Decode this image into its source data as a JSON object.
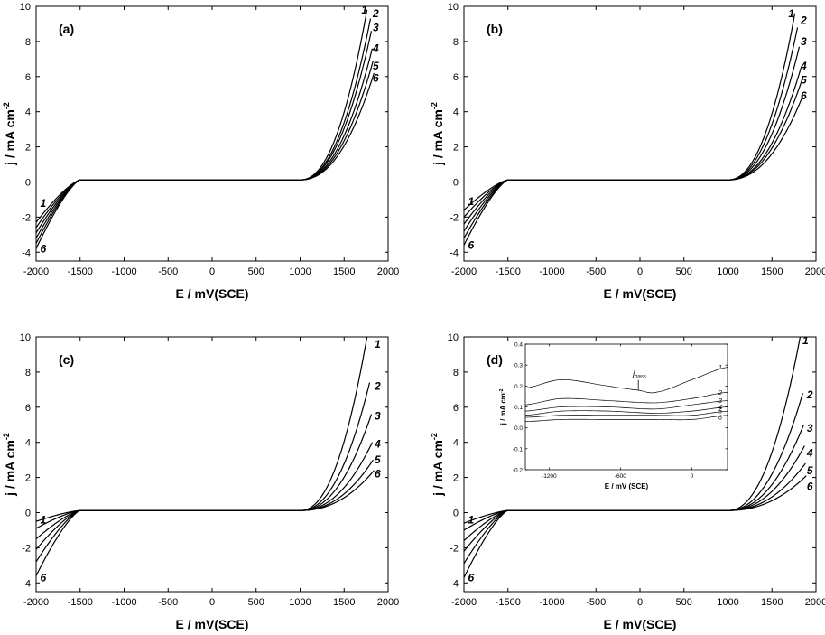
{
  "figure": {
    "xlabel": "E / mV(SCE)",
    "ylabel": "j / mA cm",
    "ylabel_exp": "-2"
  },
  "chart_data": [
    {
      "type": "line",
      "panel": "(a)",
      "xlim": [
        -2000,
        2000
      ],
      "ylim": [
        -4.5,
        10
      ],
      "xticks": [
        -2000,
        -1500,
        -1000,
        -500,
        0,
        500,
        1000,
        1500,
        2000
      ],
      "yticks": [
        -4,
        -2,
        0,
        2,
        4,
        6,
        8,
        10
      ],
      "xlabel": "E / mV(SCE)",
      "ylabel": "j / mA cm-2",
      "series": [
        {
          "name": "1",
          "cath": -2.3,
          "plateau": 0.12,
          "onset": 1000,
          "end_x": 1760,
          "end_y": 9.8
        },
        {
          "name": "2",
          "cath": -2.6,
          "plateau": 0.12,
          "onset": 1000,
          "end_x": 1800,
          "end_y": 9.3
        },
        {
          "name": "3",
          "cath": -2.9,
          "plateau": 0.12,
          "onset": 1000,
          "end_x": 1810,
          "end_y": 8.6
        },
        {
          "name": "4",
          "cath": -3.2,
          "plateau": 0.12,
          "onset": 1000,
          "end_x": 1820,
          "end_y": 7.6
        },
        {
          "name": "5",
          "cath": -3.5,
          "plateau": 0.12,
          "onset": 1000,
          "end_x": 1830,
          "end_y": 6.9
        },
        {
          "name": "6",
          "cath": -3.8,
          "plateau": 0.12,
          "onset": 1000,
          "end_x": 1840,
          "end_y": 6.2
        }
      ],
      "curve_labels": [
        {
          "text": "1",
          "x": 1730,
          "y": 9.8
        },
        {
          "text": "2",
          "x": 1860,
          "y": 9.6
        },
        {
          "text": "3",
          "x": 1860,
          "y": 8.8
        },
        {
          "text": "4",
          "x": 1860,
          "y": 7.6
        },
        {
          "text": "5",
          "x": 1860,
          "y": 6.6
        },
        {
          "text": "6",
          "x": 1860,
          "y": 5.9
        },
        {
          "text": "1",
          "x": -1920,
          "y": -1.2
        },
        {
          "text": "6",
          "x": -1920,
          "y": -3.8
        }
      ]
    },
    {
      "type": "line",
      "panel": "(b)",
      "xlim": [
        -2000,
        2000
      ],
      "ylim": [
        -4.5,
        10
      ],
      "xticks": [
        -2000,
        -1500,
        -1000,
        -500,
        0,
        500,
        1000,
        1500,
        2000
      ],
      "yticks": [
        -4,
        -2,
        0,
        2,
        4,
        6,
        8,
        10
      ],
      "xlabel": "E / mV(SCE)",
      "ylabel": "j / mA cm-2",
      "series": [
        {
          "name": "1",
          "cath": -1.6,
          "plateau": 0.12,
          "onset": 1000,
          "end_x": 1760,
          "end_y": 9.6
        },
        {
          "name": "2",
          "cath": -2.0,
          "plateau": 0.12,
          "onset": 1000,
          "end_x": 1790,
          "end_y": 8.8
        },
        {
          "name": "3",
          "cath": -2.4,
          "plateau": 0.12,
          "onset": 1000,
          "end_x": 1810,
          "end_y": 7.7
        },
        {
          "name": "4",
          "cath": -2.8,
          "plateau": 0.12,
          "onset": 1000,
          "end_x": 1830,
          "end_y": 6.5
        },
        {
          "name": "5",
          "cath": -3.2,
          "plateau": 0.12,
          "onset": 1000,
          "end_x": 1840,
          "end_y": 5.8
        },
        {
          "name": "6",
          "cath": -3.6,
          "plateau": 0.12,
          "onset": 1000,
          "end_x": 1850,
          "end_y": 4.9
        }
      ],
      "curve_labels": [
        {
          "text": "1",
          "x": 1720,
          "y": 9.6
        },
        {
          "text": "2",
          "x": 1860,
          "y": 9.2
        },
        {
          "text": "3",
          "x": 1860,
          "y": 8.0
        },
        {
          "text": "4",
          "x": 1860,
          "y": 6.6
        },
        {
          "text": "5",
          "x": 1860,
          "y": 5.8
        },
        {
          "text": "6",
          "x": 1860,
          "y": 4.9
        },
        {
          "text": "1",
          "x": -1920,
          "y": -1.1
        },
        {
          "text": "6",
          "x": -1920,
          "y": -3.6
        }
      ]
    },
    {
      "type": "line",
      "panel": "(c)",
      "xlim": [
        -2000,
        2000
      ],
      "ylim": [
        -4.5,
        10
      ],
      "xticks": [
        -2000,
        -1500,
        -1000,
        -500,
        0,
        500,
        1000,
        1500,
        2000
      ],
      "yticks": [
        -4,
        -2,
        0,
        2,
        4,
        6,
        8,
        10
      ],
      "xlabel": "E / mV(SCE)",
      "ylabel": "j / mA cm-2",
      "series": [
        {
          "name": "1",
          "cath": -0.5,
          "plateau": 0.12,
          "onset": 1000,
          "end_x": 1760,
          "end_y": 10.0
        },
        {
          "name": "2",
          "cath": -0.9,
          "plateau": 0.12,
          "onset": 1000,
          "end_x": 1790,
          "end_y": 7.4
        },
        {
          "name": "3",
          "cath": -1.5,
          "plateau": 0.12,
          "onset": 1000,
          "end_x": 1810,
          "end_y": 5.6
        },
        {
          "name": "4",
          "cath": -2.1,
          "plateau": 0.12,
          "onset": 1000,
          "end_x": 1820,
          "end_y": 4.0
        },
        {
          "name": "5",
          "cath": -2.8,
          "plateau": 0.12,
          "onset": 1000,
          "end_x": 1830,
          "end_y": 3.0
        },
        {
          "name": "6",
          "cath": -3.6,
          "plateau": 0.12,
          "onset": 1000,
          "end_x": 1840,
          "end_y": 2.4
        }
      ],
      "curve_labels": [
        {
          "text": "1",
          "x": 1880,
          "y": 9.6
        },
        {
          "text": "2",
          "x": 1880,
          "y": 7.2
        },
        {
          "text": "3",
          "x": 1880,
          "y": 5.5
        },
        {
          "text": "4",
          "x": 1880,
          "y": 3.9
        },
        {
          "text": "5",
          "x": 1880,
          "y": 3.0
        },
        {
          "text": "6",
          "x": 1880,
          "y": 2.2
        },
        {
          "text": "1",
          "x": -1920,
          "y": -0.4
        },
        {
          "text": "6",
          "x": -1920,
          "y": -3.7
        }
      ]
    },
    {
      "type": "line",
      "panel": "(d)",
      "xlim": [
        -2000,
        2000
      ],
      "ylim": [
        -4.5,
        10
      ],
      "xticks": [
        -2000,
        -1500,
        -1000,
        -500,
        0,
        500,
        1000,
        1500,
        2000
      ],
      "yticks": [
        -4,
        -2,
        0,
        2,
        4,
        6,
        8,
        10
      ],
      "xlabel": "E / mV(SCE)",
      "ylabel": "j / mA cm-2",
      "series": [
        {
          "name": "1",
          "cath": -0.6,
          "plateau": 0.12,
          "onset": 1000,
          "end_x": 1820,
          "end_y": 10.0
        },
        {
          "name": "2",
          "cath": -1.0,
          "plateau": 0.12,
          "onset": 1000,
          "end_x": 1850,
          "end_y": 6.8
        },
        {
          "name": "3",
          "cath": -1.6,
          "plateau": 0.12,
          "onset": 1000,
          "end_x": 1860,
          "end_y": 5.0
        },
        {
          "name": "4",
          "cath": -2.2,
          "plateau": 0.12,
          "onset": 1000,
          "end_x": 1870,
          "end_y": 3.8
        },
        {
          "name": "5",
          "cath": -2.9,
          "plateau": 0.12,
          "onset": 1000,
          "end_x": 1880,
          "end_y": 2.8
        },
        {
          "name": "6",
          "cath": -3.7,
          "plateau": 0.12,
          "onset": 1000,
          "end_x": 1890,
          "end_y": 2.1
        }
      ],
      "curve_labels": [
        {
          "text": "1",
          "x": 1880,
          "y": 9.8
        },
        {
          "text": "2",
          "x": 1930,
          "y": 6.7
        },
        {
          "text": "3",
          "x": 1930,
          "y": 4.8
        },
        {
          "text": "4",
          "x": 1930,
          "y": 3.4
        },
        {
          "text": "5",
          "x": 1930,
          "y": 2.4
        },
        {
          "text": "6",
          "x": 1930,
          "y": 1.5
        },
        {
          "text": "1",
          "x": -1920,
          "y": -0.4
        },
        {
          "text": "6",
          "x": -1920,
          "y": -3.7
        }
      ],
      "inset": {
        "type": "line",
        "xlim": [
          -1400,
          300
        ],
        "ylim": [
          -0.2,
          0.4
        ],
        "xticks": [
          -1200,
          -600,
          0
        ],
        "yticks": [
          -0.2,
          -0.1,
          0.0,
          0.1,
          0.2,
          0.3,
          0.4
        ],
        "ytick_labels": [
          "-0.2",
          "-0.1",
          "0.0",
          "0.1",
          "0.2",
          "0.3",
          "0.4"
        ],
        "xlabel": "E / mV (SCE)",
        "ylabel": "j / mA cm",
        "ylabel_exp": "-2",
        "annotation": {
          "text": "j",
          "sub": "pass",
          "x": -450,
          "y": 0.22
        },
        "series": [
          {
            "name": "1",
            "x": [
              -1400,
              -1100,
              -700,
              -450,
              -300,
              0,
              300
            ],
            "y": [
              0.19,
              0.23,
              0.2,
              0.18,
              0.17,
              0.23,
              0.29
            ]
          },
          {
            "name": "2",
            "x": [
              -1400,
              -1100,
              -700,
              -300,
              0,
              300
            ],
            "y": [
              0.11,
              0.14,
              0.13,
              0.12,
              0.14,
              0.17
            ]
          },
          {
            "name": "3",
            "x": [
              -1400,
              -1100,
              -700,
              -300,
              0,
              300
            ],
            "y": [
              0.08,
              0.1,
              0.1,
              0.09,
              0.11,
              0.13
            ]
          },
          {
            "name": "4",
            "x": [
              -1400,
              -1100,
              -700,
              -300,
              0,
              300
            ],
            "y": [
              0.06,
              0.08,
              0.08,
              0.07,
              0.08,
              0.1
            ]
          },
          {
            "name": "5",
            "x": [
              -1400,
              -1100,
              -700,
              -300,
              0,
              300
            ],
            "y": [
              0.05,
              0.06,
              0.06,
              0.06,
              0.06,
              0.08
            ]
          },
          {
            "name": "6",
            "x": [
              -1400,
              -1100,
              -700,
              -300,
              0,
              300
            ],
            "y": [
              0.03,
              0.04,
              0.04,
              0.04,
              0.04,
              0.06
            ]
          }
        ],
        "curve_labels": [
          {
            "text": "1",
            "x": 330,
            "y": 0.29
          },
          {
            "text": "2",
            "x": 330,
            "y": 0.17
          },
          {
            "text": "3",
            "x": 330,
            "y": 0.13
          },
          {
            "text": "4",
            "x": 330,
            "y": 0.1
          },
          {
            "text": "5",
            "x": 330,
            "y": 0.08
          },
          {
            "text": "6",
            "x": 330,
            "y": 0.05
          }
        ]
      }
    }
  ]
}
